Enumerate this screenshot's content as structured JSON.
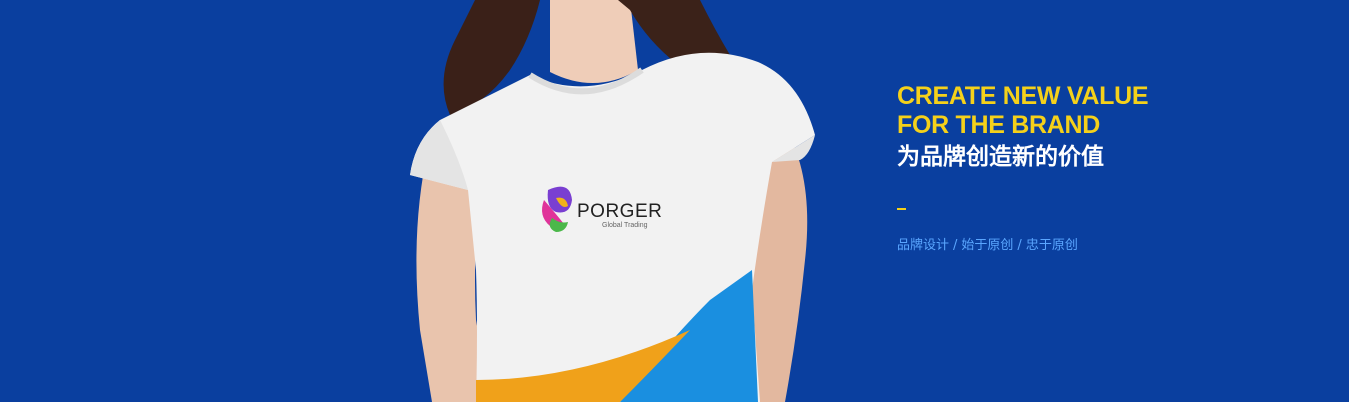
{
  "banner": {
    "background_color": "#0a3f9f",
    "headline_en_line1": "CREATE NEW VALUE",
    "headline_en_line2": "FOR THE BRAND",
    "headline_cn": "为品牌创造新的价值",
    "accent_color": "#f5d11a",
    "tagline_items": [
      "品牌设计",
      "始于原创",
      "忠于原创"
    ],
    "tagline_separator": "/"
  },
  "shirt_logo": {
    "brand": "PORGER",
    "sub": "Global Trading"
  }
}
